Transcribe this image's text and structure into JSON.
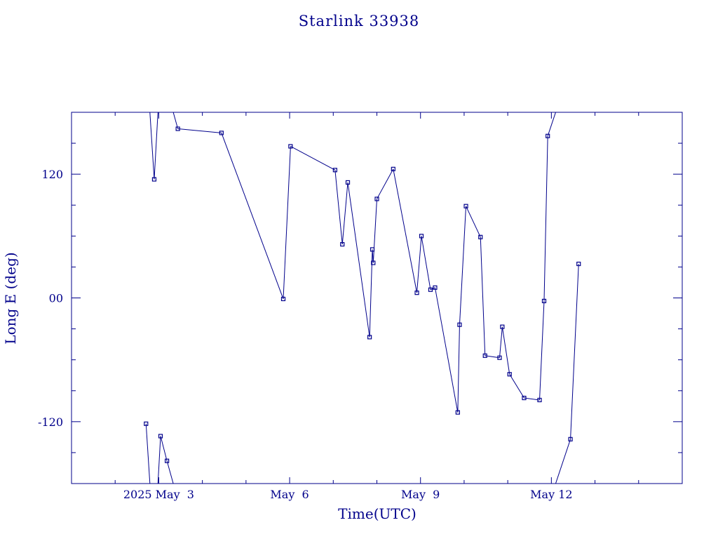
{
  "chart_data": {
    "type": "line",
    "title": "Starlink 33938",
    "xlabel": "Time(UTC)",
    "ylabel": "Long E (deg)",
    "x_unit": "days",
    "xlim": [
      "2025-05-01T00:00",
      "2025-05-15T00:00"
    ],
    "ylim": [
      -180,
      180
    ],
    "grid": false,
    "legend": "none",
    "line_color": "#00008b",
    "x_tick_labels": [
      {
        "label": "2025 May  3",
        "at": "2025-05-03T00:00"
      },
      {
        "label": "May  6",
        "at": "2025-05-06T00:00"
      },
      {
        "label": "May  9",
        "at": "2025-05-09T00:00"
      },
      {
        "label": "May 12",
        "at": "2025-05-12T00:00"
      }
    ],
    "y_tick_labels": [
      {
        "label": "-120",
        "value": -120
      },
      {
        "label": "00",
        "value": 0
      },
      {
        "label": "120",
        "value": 120
      }
    ],
    "series": [
      {
        "points": [
          [
            "2025-05-02T17:00",
            -122
          ],
          [
            "2025-05-02T21:30",
            115
          ],
          [
            "2025-05-03T01:00",
            -134
          ],
          [
            "2025-05-03T04:30",
            -158
          ],
          [
            "2025-05-03T10:30",
            164
          ],
          [
            "2025-05-04T10:30",
            160
          ],
          [
            "2025-05-05T20:30",
            -1
          ],
          [
            "2025-05-06T00:30",
            147
          ],
          [
            "2025-05-07T01:00",
            124
          ],
          [
            "2025-05-07T05:00",
            52
          ],
          [
            "2025-05-07T08:00",
            112
          ],
          [
            "2025-05-07T20:00",
            -38
          ],
          [
            "2025-05-07T21:30",
            47
          ],
          [
            "2025-05-07T22:00",
            34
          ],
          [
            "2025-05-08T00:00",
            96
          ],
          [
            "2025-05-08T09:00",
            125
          ],
          [
            "2025-05-08T22:00",
            5
          ],
          [
            "2025-05-09T00:30",
            60
          ],
          [
            "2025-05-09T05:30",
            8
          ],
          [
            "2025-05-09T08:00",
            10
          ],
          [
            "2025-05-09T20:30",
            -111
          ],
          [
            "2025-05-09T21:30",
            -26
          ],
          [
            "2025-05-10T01:00",
            89
          ],
          [
            "2025-05-10T09:00",
            59
          ],
          [
            "2025-05-10T11:30",
            -56
          ],
          [
            "2025-05-10T19:30",
            -58
          ],
          [
            "2025-05-10T21:00",
            -28
          ],
          [
            "2025-05-11T01:00",
            -74
          ],
          [
            "2025-05-11T09:00",
            -97
          ],
          [
            "2025-05-11T17:30",
            -99
          ],
          [
            "2025-05-11T20:00",
            -3
          ],
          [
            "2025-05-11T22:00",
            157
          ],
          [
            "2025-05-12T10:30",
            -137
          ],
          [
            "2025-05-12T15:00",
            33
          ]
        ]
      }
    ]
  }
}
